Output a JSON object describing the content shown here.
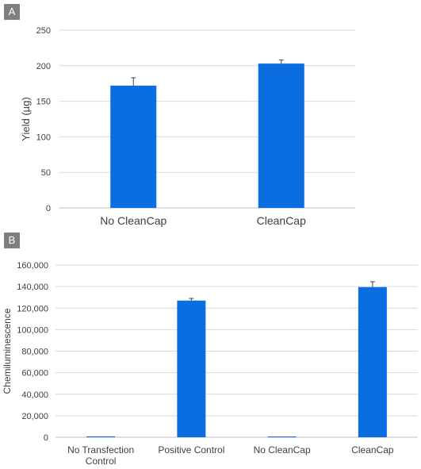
{
  "panels": [
    {
      "tag": "A",
      "chart_data": {
        "type": "bar",
        "categories": [
          "No CleanCap",
          "CleanCap"
        ],
        "values": [
          172,
          203
        ],
        "error": [
          11,
          5
        ],
        "ylabel": "Yield (µg)",
        "ylim": [
          0,
          250
        ],
        "yticks": [
          "0",
          "50",
          "100",
          "150",
          "200",
          "250"
        ],
        "grid": true,
        "bar_color": "#0a6ee0"
      }
    },
    {
      "tag": "B",
      "chart_data": {
        "type": "bar",
        "categories": [
          [
            "No Transfection",
            "Control"
          ],
          [
            "Positive Control"
          ],
          [
            "No CleanCap"
          ],
          [
            "CleanCap"
          ]
        ],
        "values": [
          800,
          127000,
          700,
          139500
        ],
        "error": [
          0,
          2000,
          0,
          5000
        ],
        "ylabel": "Chemiluminescence",
        "ylim": [
          0,
          160000
        ],
        "yticks": [
          "0",
          "20,000",
          "40,000",
          "60,000",
          "80,000",
          "100,000",
          "120,000",
          "140,000",
          "160,000"
        ],
        "grid": true,
        "bar_color": "#0a6ee0"
      }
    }
  ]
}
